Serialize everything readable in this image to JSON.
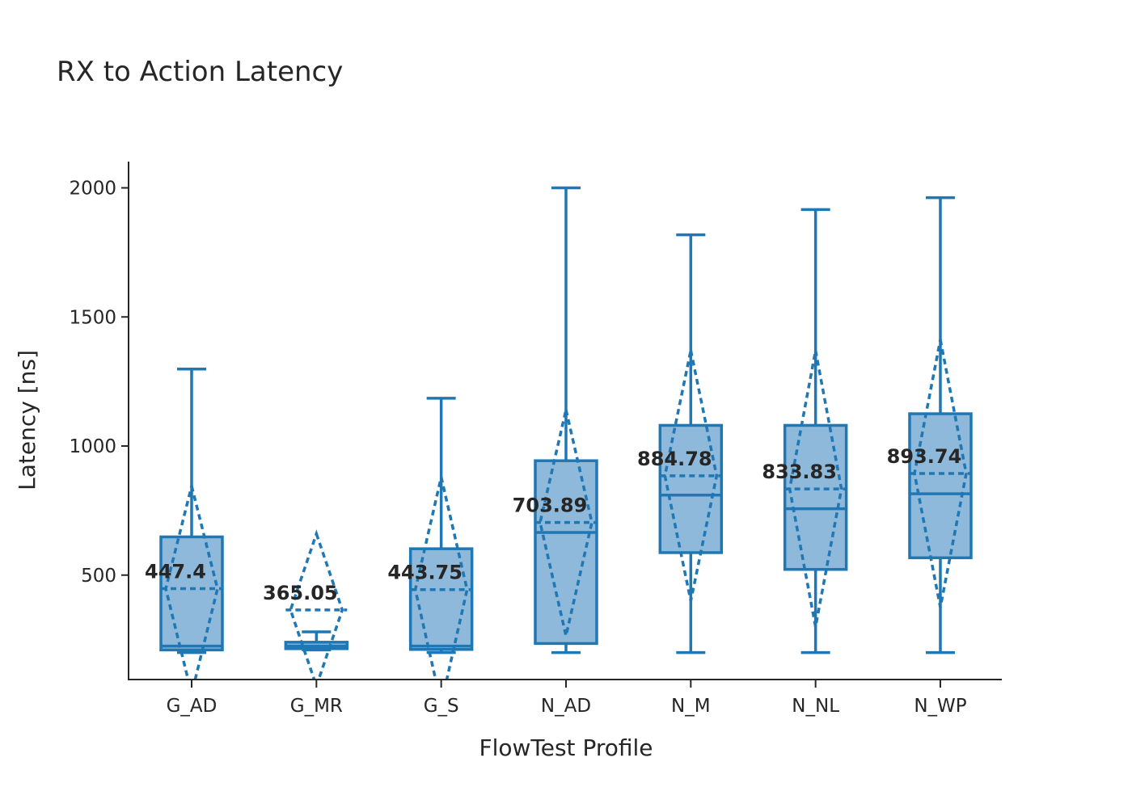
{
  "chart_data": {
    "type": "box",
    "title": "RX to Action Latency",
    "xlabel": "FlowTest Profile",
    "ylabel": "Latency [ns]",
    "ylim": [
      100,
      2100
    ],
    "yticks": [
      500,
      1000,
      1500,
      2000
    ],
    "grid": false,
    "legend": "none",
    "box_color": "#1f77b4",
    "box_fill": "#8fb9da",
    "categories": [
      "G_AD",
      "G_MR",
      "G_S",
      "N_AD",
      "N_M",
      "N_NL",
      "N_WP"
    ],
    "boxes": [
      {
        "category": "G_AD",
        "min": 200,
        "q1": 210,
        "median": 225,
        "q3": 648,
        "max": 1298,
        "mean": 447.4,
        "mean_label": "447.4",
        "sd_low": 40,
        "sd_high": 845
      },
      {
        "category": "G_MR",
        "min": 210,
        "q1": 215,
        "median": 225,
        "q3": 240,
        "max": 280,
        "mean": 365.05,
        "mean_label": "365.05",
        "sd_low": 70,
        "sd_high": 660
      },
      {
        "category": "G_S",
        "min": 200,
        "q1": 212,
        "median": 225,
        "q3": 602,
        "max": 1185,
        "mean": 443.75,
        "mean_label": "443.75",
        "sd_low": 0,
        "sd_high": 880
      },
      {
        "category": "N_AD",
        "min": 200,
        "q1": 235,
        "median": 665,
        "q3": 943,
        "max": 2000,
        "mean": 703.89,
        "mean_label": "703.89",
        "sd_low": 265,
        "sd_high": 1140
      },
      {
        "category": "N_M",
        "min": 200,
        "q1": 587,
        "median": 810,
        "q3": 1080,
        "max": 1818,
        "mean": 884.78,
        "mean_label": "884.78",
        "sd_low": 400,
        "sd_high": 1370
      },
      {
        "category": "N_NL",
        "min": 200,
        "q1": 522,
        "median": 757,
        "q3": 1080,
        "max": 1916,
        "mean": 833.83,
        "mean_label": "833.83",
        "sd_low": 300,
        "sd_high": 1370
      },
      {
        "category": "N_WP",
        "min": 200,
        "q1": 567,
        "median": 815,
        "q3": 1125,
        "max": 1962,
        "mean": 893.74,
        "mean_label": "893.74",
        "sd_low": 375,
        "sd_high": 1412
      }
    ]
  }
}
